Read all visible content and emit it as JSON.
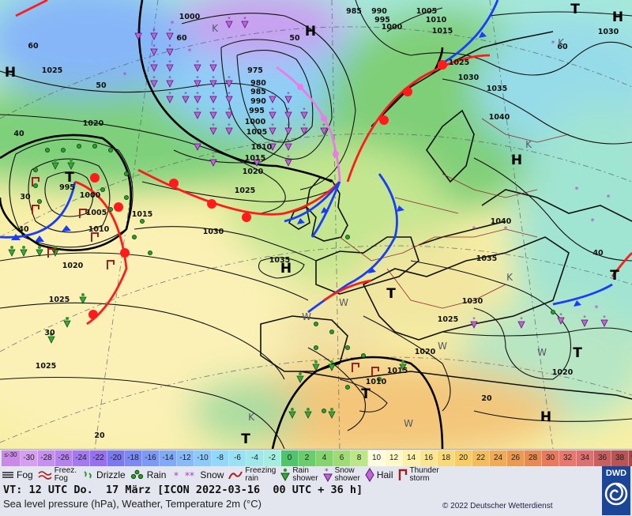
{
  "map": {
    "pressure_labels": [
      {
        "text": "1000"
      },
      {
        "text": "60"
      },
      {
        "text": "985"
      },
      {
        "text": "990"
      },
      {
        "text": "1005"
      },
      {
        "text": "995"
      },
      {
        "text": "1000"
      },
      {
        "text": "1010"
      },
      {
        "text": "1015"
      },
      {
        "text": "1030"
      },
      {
        "text": "60"
      },
      {
        "text": "1025"
      },
      {
        "text": "50"
      },
      {
        "text": "1025"
      },
      {
        "text": "1030"
      },
      {
        "text": "1035"
      },
      {
        "text": "1040"
      },
      {
        "text": "975"
      },
      {
        "text": "980"
      },
      {
        "text": "985"
      },
      {
        "text": "990"
      },
      {
        "text": "995"
      },
      {
        "text": "1000"
      },
      {
        "text": "1005"
      },
      {
        "text": "1010"
      },
      {
        "text": "1015"
      },
      {
        "text": "1020"
      },
      {
        "text": "1020"
      },
      {
        "text": "40"
      },
      {
        "text": "995"
      },
      {
        "text": "1000"
      },
      {
        "text": "1005"
      },
      {
        "text": "1010"
      },
      {
        "text": "1015"
      },
      {
        "text": "40"
      },
      {
        "text": "1025"
      },
      {
        "text": "1030"
      },
      {
        "text": "1020"
      },
      {
        "text": "1035"
      },
      {
        "text": "1025"
      },
      {
        "text": "1040"
      },
      {
        "text": "1035"
      },
      {
        "text": "1030"
      },
      {
        "text": "1025"
      },
      {
        "text": "30"
      },
      {
        "text": "1020"
      },
      {
        "text": "1015"
      },
      {
        "text": "1010"
      },
      {
        "text": "1025"
      },
      {
        "text": "1020"
      },
      {
        "text": "20"
      },
      {
        "text": "40"
      },
      {
        "text": "20"
      },
      {
        "text": "60"
      },
      {
        "text": "50"
      },
      {
        "text": "30"
      }
    ],
    "centers": [
      {
        "text": "H"
      },
      {
        "text": "H"
      },
      {
        "text": "H"
      },
      {
        "text": "H"
      },
      {
        "text": "H"
      },
      {
        "text": "H"
      },
      {
        "text": "T"
      },
      {
        "text": "T"
      },
      {
        "text": "T"
      },
      {
        "text": "T"
      },
      {
        "text": "T"
      },
      {
        "text": "T"
      },
      {
        "text": "T"
      }
    ],
    "minor_labels": [
      {
        "text": "K"
      },
      {
        "text": "K"
      },
      {
        "text": "K"
      },
      {
        "text": "K"
      },
      {
        "text": "K"
      },
      {
        "text": "W"
      },
      {
        "text": "W"
      },
      {
        "text": "W"
      },
      {
        "text": "W"
      },
      {
        "text": "W"
      }
    ]
  },
  "legend": {
    "temp_scale": [
      {
        "label": "≤-30",
        "color": "#c98ae6"
      },
      {
        "label": "-30",
        "color": "#d79ff0"
      },
      {
        "label": "-28",
        "color": "#c690ee"
      },
      {
        "label": "-26",
        "color": "#b682ec"
      },
      {
        "label": "-24",
        "color": "#a478ee"
      },
      {
        "label": "-22",
        "color": "#9670ee"
      },
      {
        "label": "-20",
        "color": "#7b78f0"
      },
      {
        "label": "-18",
        "color": "#7a8af2"
      },
      {
        "label": "-16",
        "color": "#7c9af4"
      },
      {
        "label": "-14",
        "color": "#80aaf6"
      },
      {
        "label": "-12",
        "color": "#86baf8"
      },
      {
        "label": "-10",
        "color": "#8ccafa"
      },
      {
        "label": "-8",
        "color": "#92d8fa"
      },
      {
        "label": "-6",
        "color": "#98e2f4"
      },
      {
        "label": "-4",
        "color": "#9ee8ea"
      },
      {
        "label": "-2",
        "color": "#a4eee0"
      },
      {
        "label": "0",
        "color": "#4fc46a"
      },
      {
        "label": "2",
        "color": "#6bcc6c"
      },
      {
        "label": "4",
        "color": "#86d46e"
      },
      {
        "label": "6",
        "color": "#a0dc76"
      },
      {
        "label": "8",
        "color": "#bde687"
      },
      {
        "label": "10",
        "color": "#fffde0"
      },
      {
        "label": "12",
        "color": "#fff8c8"
      },
      {
        "label": "14",
        "color": "#fdf0a8"
      },
      {
        "label": "16",
        "color": "#fbe690"
      },
      {
        "label": "18",
        "color": "#f8da78"
      },
      {
        "label": "20",
        "color": "#f6cc66"
      },
      {
        "label": "22",
        "color": "#f3bd5c"
      },
      {
        "label": "24",
        "color": "#efab56"
      },
      {
        "label": "26",
        "color": "#eb9a52"
      },
      {
        "label": "28",
        "color": "#e88b50"
      },
      {
        "label": "30",
        "color": "#e67a5a"
      },
      {
        "label": "32",
        "color": "#e6786e"
      },
      {
        "label": "34",
        "color": "#dd7070"
      },
      {
        "label": "36",
        "color": "#c96060"
      },
      {
        "label": "38",
        "color": "#b85454"
      },
      {
        "label": "≥40 °C",
        "color": "#a84848"
      }
    ],
    "symbols": [
      {
        "name": "fog-icon",
        "label": "Fog"
      },
      {
        "name": "freezing-fog-icon",
        "label": "Freez.\nFog"
      },
      {
        "name": "drizzle-icon",
        "label": "Drizzle"
      },
      {
        "name": "rain-icon",
        "label": "Rain"
      },
      {
        "name": "snow-icon",
        "label": "Snow"
      },
      {
        "name": "freezing-rain-icon",
        "label": "Freezing\nrain"
      },
      {
        "name": "rain-shower-icon",
        "label": "Rain\nshower"
      },
      {
        "name": "snow-shower-icon",
        "label": "Snow\nshower"
      },
      {
        "name": "hail-icon",
        "label": "Hail"
      },
      {
        "name": "thunderstorm-icon",
        "label": "Thunder\nstorm"
      }
    ],
    "valid_time": "VT: 12 UTC Do.  17 März [ICON 2022-03-16  00 UTC + 36 h]",
    "parameters": "Sea level pressure (hPa), Weather, Temperature 2m (°C)",
    "copyright": "© 2022 Deutscher Wetterdienst",
    "logo_text": "DWD"
  }
}
